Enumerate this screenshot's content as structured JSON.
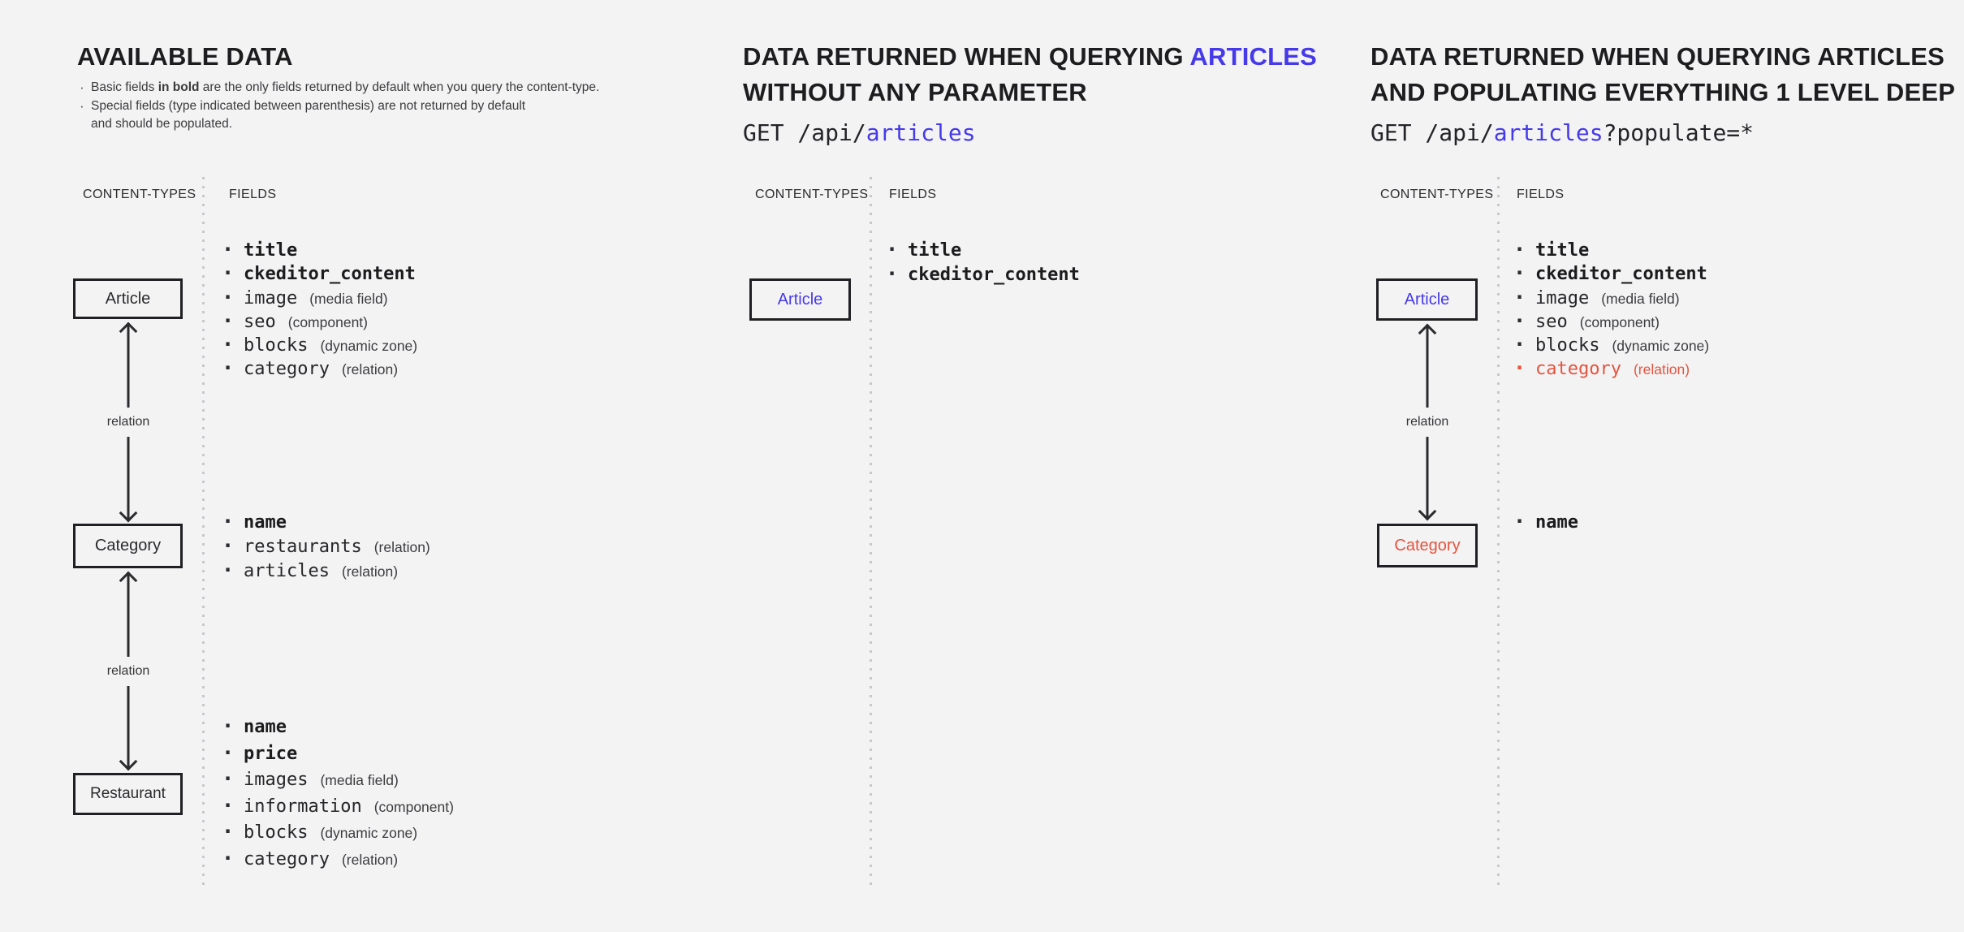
{
  "palette": {
    "bg": "#f3f3f4",
    "ink": "#1d1d1f",
    "blue": "#4539e9",
    "red": "#e5543e",
    "dotted_line": "#c8c8cb",
    "arrow": "#2b2b2e"
  },
  "col1": {
    "title": "AVAILABLE DATA",
    "notes": [
      {
        "bullet": true,
        "runs": [
          {
            "t": "Basic fields "
          },
          {
            "t": "in bold",
            "b": true
          },
          {
            "t": " are the only fields returned by default when you query the content-type."
          }
        ]
      },
      {
        "bullet": true,
        "runs": [
          {
            "t": "Special fields (type indicated between parenthesis) are not returned by default"
          }
        ]
      },
      {
        "bullet": false,
        "runs": [
          {
            "t": "and should be populated."
          }
        ]
      }
    ],
    "content_types_label": "CONTENT-TYPES",
    "fields_label": "FIELDS",
    "boxes": {
      "article": "Article",
      "category": "Category",
      "restaurant": "Restaurant"
    },
    "relation_labels": [
      "relation",
      "relation"
    ],
    "article_fields": [
      {
        "name": "title",
        "bold": true
      },
      {
        "name": "ckeditor_content",
        "bold": true
      },
      {
        "name": "image",
        "type": "(media field)"
      },
      {
        "name": "seo",
        "type": "(component)"
      },
      {
        "name": "blocks",
        "type": "(dynamic zone)"
      },
      {
        "name": "category",
        "type": "(relation)"
      }
    ],
    "category_fields": [
      {
        "name": "name",
        "bold": true
      },
      {
        "name": "restaurants",
        "type": "(relation)"
      },
      {
        "name": "articles",
        "type": "(relation)"
      }
    ],
    "restaurant_fields": [
      {
        "name": "name",
        "bold": true
      },
      {
        "name": "price",
        "bold": true
      },
      {
        "name": "images",
        "type": "(media field)"
      },
      {
        "name": "information",
        "type": "(component)"
      },
      {
        "name": "blocks",
        "type": "(dynamic zone)"
      },
      {
        "name": "category",
        "type": "(relation)"
      }
    ]
  },
  "col2": {
    "title_line1_runs": [
      {
        "t": "DATA RETURNED WHEN QUERYING "
      },
      {
        "t": "ARTICLES",
        "color": "blue"
      }
    ],
    "title_line2": "WITHOUT ANY PARAMETER",
    "request_runs": [
      {
        "t": "GET /api/"
      },
      {
        "t": "articles",
        "color": "blue"
      }
    ],
    "content_types_label": "CONTENT-TYPES",
    "fields_label": "FIELDS",
    "boxes": {
      "article": "Article"
    },
    "article_fields": [
      {
        "name": "title",
        "bold": true
      },
      {
        "name": "ckeditor_content",
        "bold": true
      }
    ]
  },
  "col3": {
    "title_line1": "DATA RETURNED WHEN QUERYING ARTICLES",
    "title_line2": "AND POPULATING EVERYTHING 1 LEVEL DEEP",
    "request_runs": [
      {
        "t": "GET /api/"
      },
      {
        "t": "articles",
        "color": "blue"
      },
      {
        "t": "?populate=*"
      }
    ],
    "content_types_label": "CONTENT-TYPES",
    "fields_label": "FIELDS",
    "boxes": {
      "article": "Article",
      "category": "Category"
    },
    "relation_labels": [
      "relation"
    ],
    "article_fields": [
      {
        "name": "title",
        "bold": true
      },
      {
        "name": "ckeditor_content",
        "bold": true
      },
      {
        "name": "image",
        "type": "(media field)"
      },
      {
        "name": "seo",
        "type": "(component)"
      },
      {
        "name": "blocks",
        "type": "(dynamic zone)"
      },
      {
        "name": "category",
        "type": "(relation)",
        "color": "red"
      }
    ],
    "category_fields": [
      {
        "name": "name",
        "bold": true
      }
    ]
  }
}
